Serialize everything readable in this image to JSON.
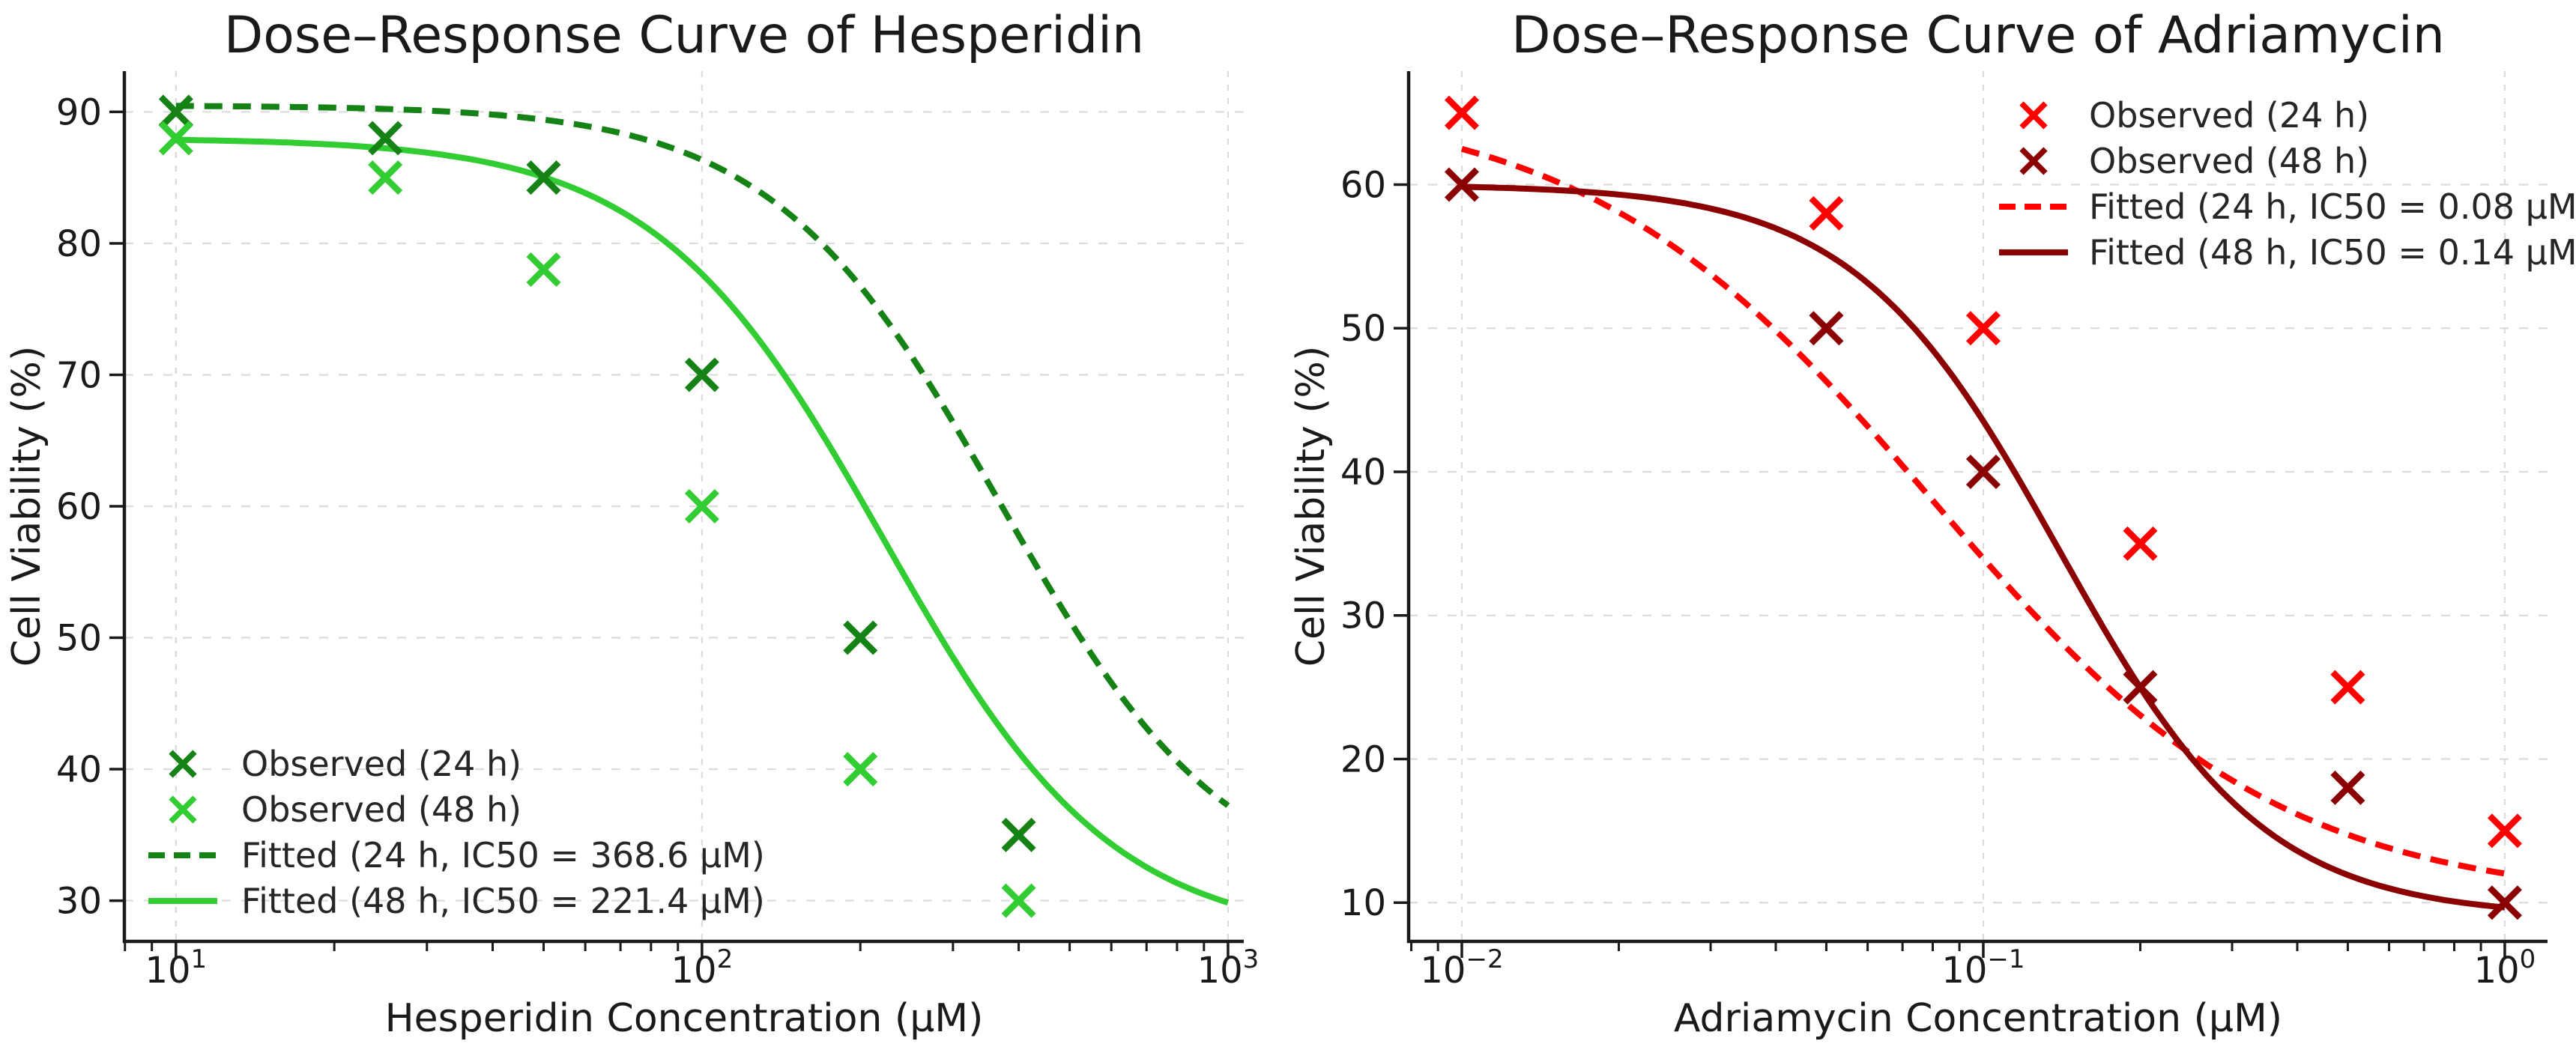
{
  "figure": {
    "background": "#ffffff"
  },
  "chart_data": [
    {
      "type": "scatter",
      "title": "Dose–Response Curve of Hesperidin",
      "xlabel": "Hesperidin Concentration (μM)",
      "ylabel": "Cell Viability (%)",
      "x_scale": "log",
      "x_tick_exponents": [
        1,
        2,
        3
      ],
      "xlim_log10": [
        0.902,
        3.03
      ],
      "ylim": [
        26.9,
        93.1
      ],
      "y_ticks": [
        30,
        40,
        50,
        60,
        70,
        80,
        90
      ],
      "grid": true,
      "legend_position": "lower-left",
      "x": [
        10,
        25,
        50,
        100,
        200,
        400
      ],
      "series": [
        {
          "label": "Observed (24 h)",
          "kind": "scatter",
          "marker": "x",
          "color": "#148214",
          "values": [
            90,
            88,
            85,
            70,
            50,
            35
          ]
        },
        {
          "label": "Observed (48 h)",
          "kind": "scatter",
          "marker": "x",
          "color": "#32cd32",
          "values": [
            88,
            85,
            78,
            60,
            40,
            30
          ]
        },
        {
          "label": "Fitted (24 h, IC50 = 368.6 μM)",
          "kind": "line",
          "style": "dashed",
          "color": "#148214",
          "ic50": 368.6,
          "fit": {
            "top": 90.5,
            "bottom": 30,
            "ic50": 368.6,
            "hill": 2.0
          },
          "x_range": [
            10,
            1000
          ]
        },
        {
          "label": "Fitted (48 h, IC50 = 221.4 μM)",
          "kind": "line",
          "style": "solid",
          "color": "#32cd32",
          "ic50": 221.4,
          "fit": {
            "top": 88,
            "bottom": 27,
            "ic50": 221.4,
            "hill": 2.0
          },
          "x_range": [
            10,
            1000
          ]
        }
      ]
    },
    {
      "type": "scatter",
      "title": "Dose–Response Curve of Adriamycin",
      "xlabel": "Adriamycin Concentration (μM)",
      "ylabel": "Cell Viability (%)",
      "x_scale": "log",
      "x_tick_exponents": [
        -2,
        -1,
        0
      ],
      "xlim_log10": [
        -2.102,
        0.082
      ],
      "ylim": [
        7.3,
        67.9
      ],
      "y_ticks": [
        10,
        20,
        30,
        40,
        50,
        60
      ],
      "grid": true,
      "legend_position": "upper-right",
      "x": [
        0.01,
        0.05,
        0.1,
        0.2,
        0.5,
        1.0
      ],
      "series": [
        {
          "label": "Observed (24 h)",
          "kind": "scatter",
          "marker": "x",
          "color": "#ff0000",
          "values": [
            65,
            58,
            50,
            35,
            25,
            15
          ]
        },
        {
          "label": "Observed (48 h)",
          "kind": "scatter",
          "marker": "x",
          "color": "#8b0000",
          "values": [
            60,
            50,
            40,
            25,
            18,
            10
          ]
        },
        {
          "label": "Fitted (24 h, IC50 = 0.08 μM)",
          "kind": "line",
          "style": "dashed",
          "color": "#ff0000",
          "ic50": 0.08,
          "fit": {
            "top": 66,
            "bottom": 10,
            "ic50": 0.08,
            "hill": 1.3
          },
          "x_range": [
            0.01,
            1.0
          ]
        },
        {
          "label": "Fitted (48 h, IC50 = 0.14 μM)",
          "kind": "line",
          "style": "solid",
          "color": "#8b0000",
          "ic50": 0.14,
          "fit": {
            "top": 60,
            "bottom": 9,
            "ic50": 0.14,
            "hill": 2.2
          },
          "x_range": [
            0.01,
            1.0
          ]
        }
      ]
    }
  ]
}
